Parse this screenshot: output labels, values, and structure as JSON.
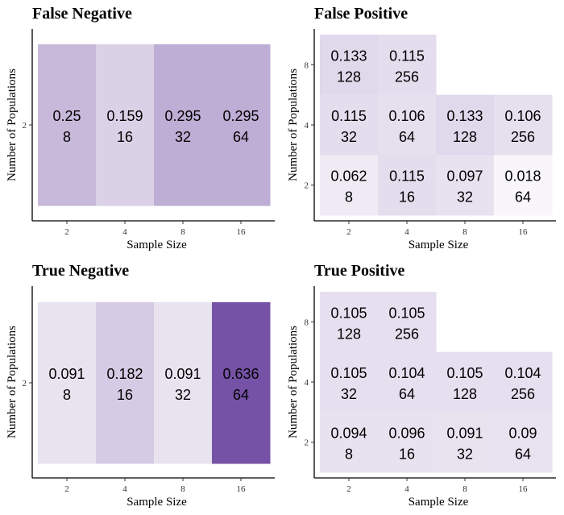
{
  "chart_data": [
    {
      "type": "heatmap",
      "title": "False Negative",
      "xlabel": "Sample Size",
      "ylabel": "Number of Populations",
      "x_ticks": [
        "2",
        "4",
        "8",
        "16"
      ],
      "y_ticks": [
        "2"
      ],
      "grid": false,
      "cells": [
        {
          "x": "2",
          "y": "2",
          "value": 0.25,
          "value_label": "0.25",
          "count": "8"
        },
        {
          "x": "4",
          "y": "2",
          "value": 0.159,
          "value_label": "0.159",
          "count": "16"
        },
        {
          "x": "8",
          "y": "2",
          "value": 0.295,
          "value_label": "0.295",
          "count": "32"
        },
        {
          "x": "16",
          "y": "2",
          "value": 0.295,
          "value_label": "0.295",
          "count": "64"
        }
      ]
    },
    {
      "type": "heatmap",
      "title": "False Positive",
      "xlabel": "Sample Size",
      "ylabel": "Number of Populations",
      "x_ticks": [
        "2",
        "4",
        "8",
        "16"
      ],
      "y_ticks": [
        "2",
        "4",
        "8"
      ],
      "grid": false,
      "cells": [
        {
          "x": "2",
          "y": "8",
          "value": 0.133,
          "value_label": "0.133",
          "count": "128"
        },
        {
          "x": "4",
          "y": "8",
          "value": 0.115,
          "value_label": "0.115",
          "count": "256"
        },
        {
          "x": "2",
          "y": "4",
          "value": 0.115,
          "value_label": "0.115",
          "count": "32"
        },
        {
          "x": "4",
          "y": "4",
          "value": 0.106,
          "value_label": "0.106",
          "count": "64"
        },
        {
          "x": "8",
          "y": "4",
          "value": 0.133,
          "value_label": "0.133",
          "count": "128"
        },
        {
          "x": "16",
          "y": "4",
          "value": 0.106,
          "value_label": "0.106",
          "count": "256"
        },
        {
          "x": "2",
          "y": "2",
          "value": 0.062,
          "value_label": "0.062",
          "count": "8"
        },
        {
          "x": "4",
          "y": "2",
          "value": 0.115,
          "value_label": "0.115",
          "count": "16"
        },
        {
          "x": "8",
          "y": "2",
          "value": 0.097,
          "value_label": "0.097",
          "count": "32"
        },
        {
          "x": "16",
          "y": "2",
          "value": 0.018,
          "value_label": "0.018",
          "count": "64"
        }
      ]
    },
    {
      "type": "heatmap",
      "title": "True Negative",
      "xlabel": "Sample Size",
      "ylabel": "Number of Populations",
      "x_ticks": [
        "2",
        "4",
        "8",
        "16"
      ],
      "y_ticks": [
        "2"
      ],
      "grid": false,
      "cells": [
        {
          "x": "2",
          "y": "2",
          "value": 0.091,
          "value_label": "0.091",
          "count": "8"
        },
        {
          "x": "4",
          "y": "2",
          "value": 0.182,
          "value_label": "0.182",
          "count": "16"
        },
        {
          "x": "8",
          "y": "2",
          "value": 0.091,
          "value_label": "0.091",
          "count": "32"
        },
        {
          "x": "16",
          "y": "2",
          "value": 0.636,
          "value_label": "0.636",
          "count": "64"
        }
      ]
    },
    {
      "type": "heatmap",
      "title": "True Positive",
      "xlabel": "Sample Size",
      "ylabel": "Number of Populations",
      "x_ticks": [
        "2",
        "4",
        "8",
        "16"
      ],
      "y_ticks": [
        "2",
        "4",
        "8"
      ],
      "grid": false,
      "cells": [
        {
          "x": "2",
          "y": "8",
          "value": 0.105,
          "value_label": "0.105",
          "count": "128"
        },
        {
          "x": "4",
          "y": "8",
          "value": 0.105,
          "value_label": "0.105",
          "count": "256"
        },
        {
          "x": "2",
          "y": "4",
          "value": 0.105,
          "value_label": "0.105",
          "count": "32"
        },
        {
          "x": "4",
          "y": "4",
          "value": 0.104,
          "value_label": "0.104",
          "count": "64"
        },
        {
          "x": "8",
          "y": "4",
          "value": 0.105,
          "value_label": "0.105",
          "count": "128"
        },
        {
          "x": "16",
          "y": "4",
          "value": 0.104,
          "value_label": "0.104",
          "count": "256"
        },
        {
          "x": "2",
          "y": "2",
          "value": 0.094,
          "value_label": "0.094",
          "count": "8"
        },
        {
          "x": "4",
          "y": "2",
          "value": 0.096,
          "value_label": "0.096",
          "count": "16"
        },
        {
          "x": "8",
          "y": "2",
          "value": 0.091,
          "value_label": "0.091",
          "count": "32"
        },
        {
          "x": "16",
          "y": "2",
          "value": 0.09,
          "value_label": "0.09",
          "count": "64"
        }
      ]
    }
  ],
  "colors": {
    "fill_low": "#fcfbfd",
    "fill_high": "#54278f",
    "axis": "#000000",
    "tick": "#333333"
  }
}
